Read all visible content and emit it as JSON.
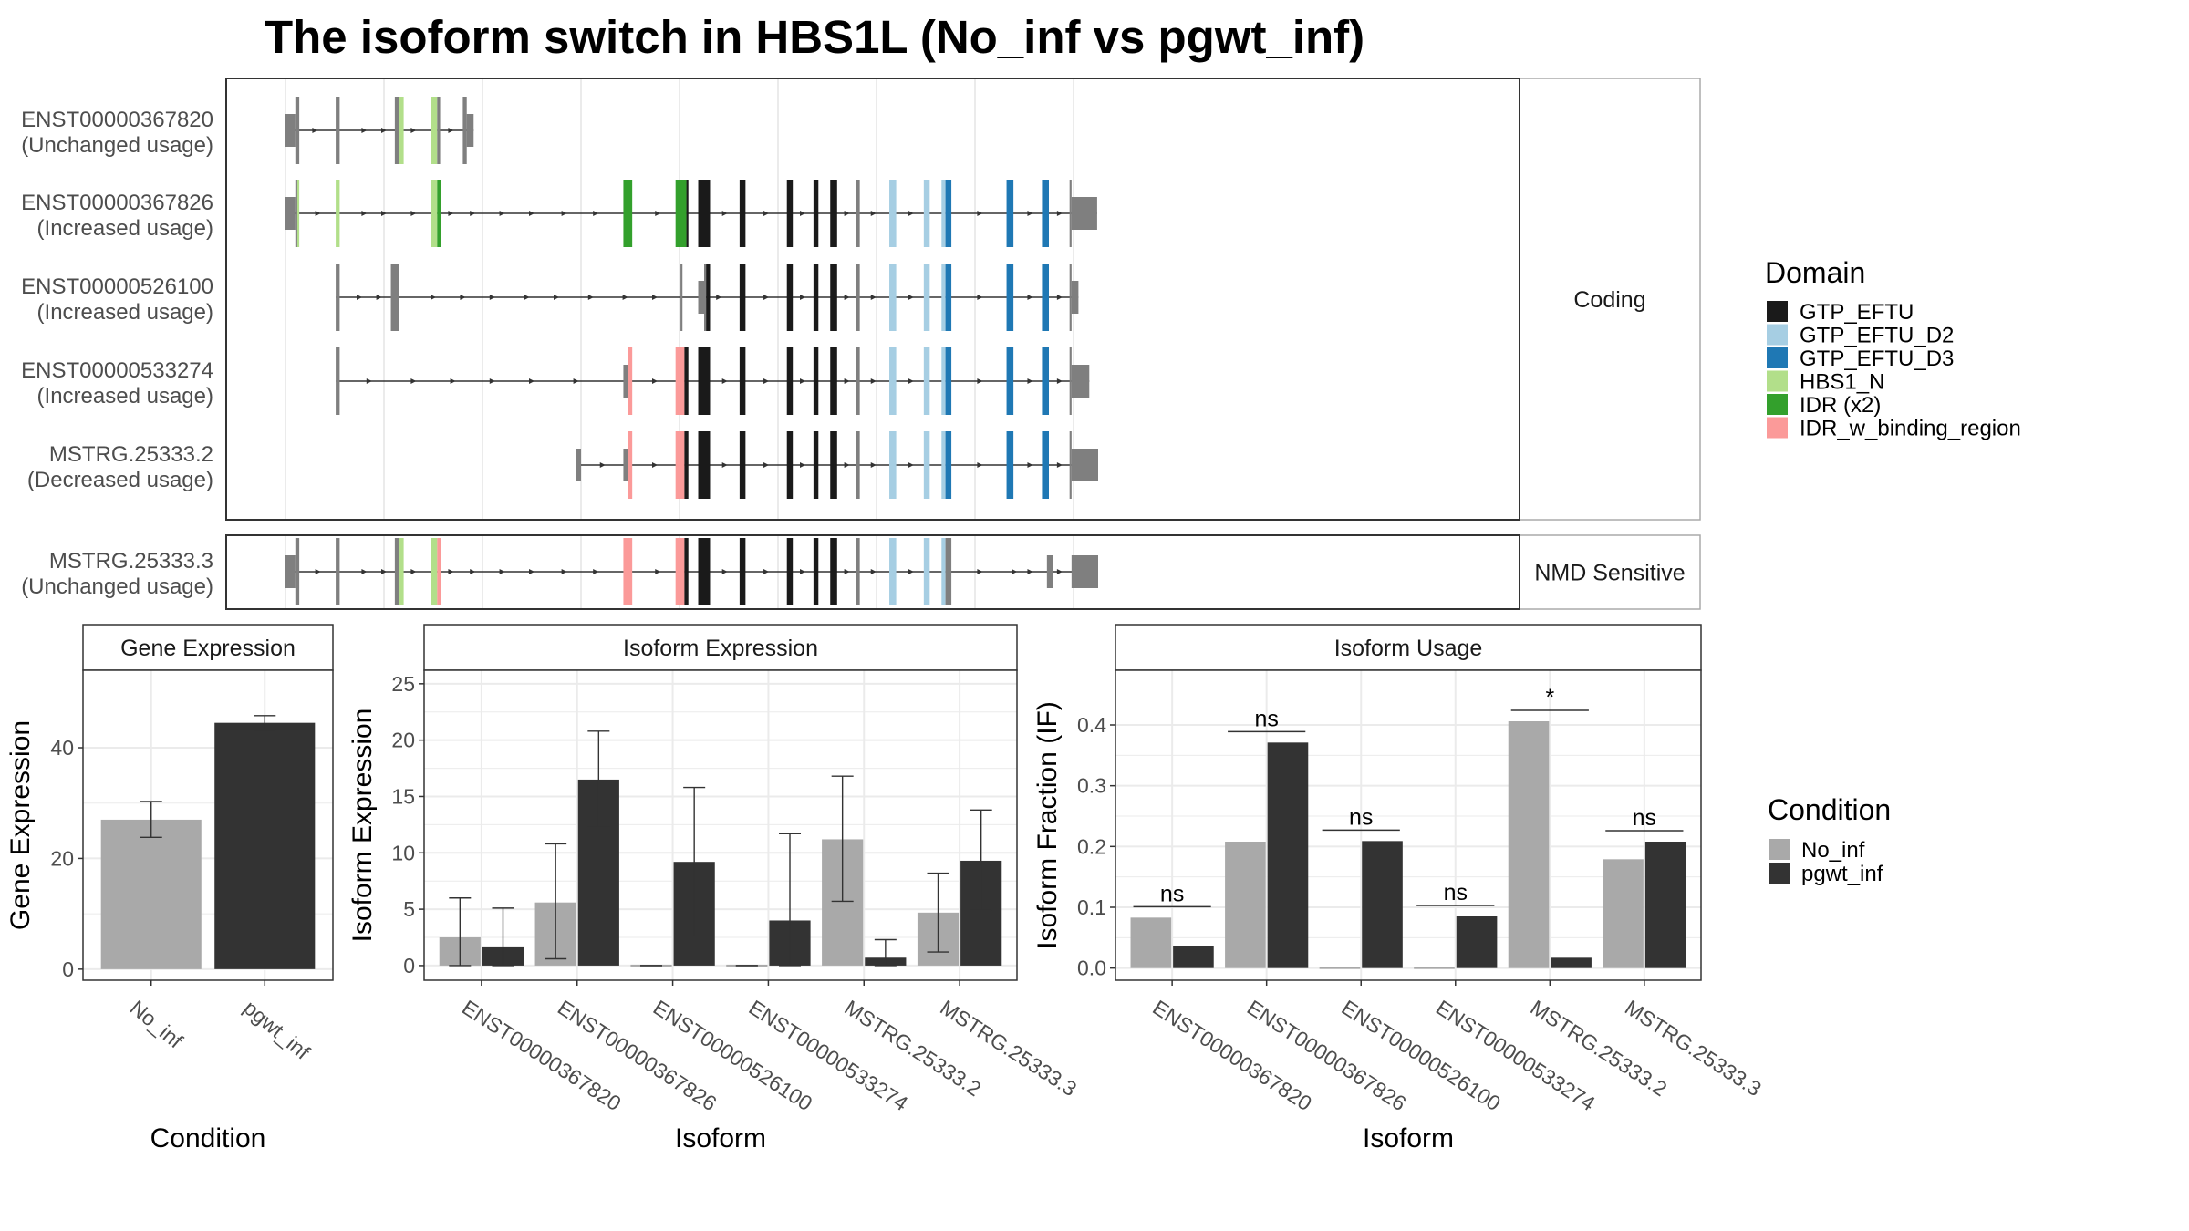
{
  "title": "The isoform switch in HBS1L (No_inf vs pgwt_inf)",
  "colors": {
    "panel_border": "#333333",
    "strip_fill": "#ffffff",
    "grid": "#ebebeb",
    "intron": "#333333",
    "utr": "#7f7f7f",
    "no_inf": "#a9a9a9",
    "pgwt_inf": "#333333",
    "GTP_EFTU": "#1a1a1a",
    "GTP_EFTU_D2": "#a6cee3",
    "GTP_EFTU_D3": "#1f78b4",
    "HBS1_N": "#b2df8a",
    "IDR (x2)": "#33a02c",
    "IDR_w_binding_region": "#fb9a99"
  },
  "transcripts": {
    "facets": [
      "Coding",
      "NMD Sensitive"
    ],
    "rows": [
      {
        "id": "ENST00000367820",
        "usage": "(Unchanged usage)",
        "facet": "Coding",
        "features": [
          {
            "kind": "utr",
            "start": 0,
            "end": 10
          },
          {
            "kind": "cds",
            "start": 10,
            "end": 14
          },
          {
            "kind": "cds",
            "start": 51,
            "end": 55
          },
          {
            "kind": "cds",
            "start": 111,
            "end": 115
          },
          {
            "kind": "HBS1_N",
            "start": 115,
            "end": 120
          },
          {
            "kind": "HBS1_N",
            "start": 148,
            "end": 154
          },
          {
            "kind": "cds",
            "start": 154,
            "end": 157
          },
          {
            "kind": "cds",
            "start": 180,
            "end": 184
          },
          {
            "kind": "utr",
            "start": 184,
            "end": 191
          }
        ],
        "arrows": [
          30,
          80,
          100,
          130,
          168
        ]
      },
      {
        "id": "ENST00000367826",
        "usage": "(Increased usage)",
        "facet": "Coding",
        "features": [
          {
            "kind": "utr",
            "start": 0,
            "end": 10
          },
          {
            "kind": "cds",
            "start": 10,
            "end": 12
          },
          {
            "kind": "HBS1_N",
            "start": 12,
            "end": 14
          },
          {
            "kind": "HBS1_N",
            "start": 51,
            "end": 55
          },
          {
            "kind": "HBS1_N",
            "start": 148,
            "end": 154
          },
          {
            "kind": "IDR (x2)",
            "start": 154,
            "end": 158
          },
          {
            "kind": "IDR (x2)",
            "start": 343,
            "end": 352
          },
          {
            "kind": "IDR (x2)",
            "start": 396,
            "end": 407
          },
          {
            "kind": "GTP_EFTU",
            "start": 407,
            "end": 409
          },
          {
            "kind": "GTP_EFTU",
            "start": 419,
            "end": 431
          },
          {
            "kind": "GTP_EFTU",
            "start": 461,
            "end": 467
          },
          {
            "kind": "GTP_EFTU",
            "start": 509,
            "end": 515
          },
          {
            "kind": "GTP_EFTU",
            "start": 536,
            "end": 541
          },
          {
            "kind": "GTP_EFTU",
            "start": 553,
            "end": 560
          },
          {
            "kind": "cds",
            "start": 579,
            "end": 583
          },
          {
            "kind": "GTP_EFTU_D2",
            "start": 613,
            "end": 620
          },
          {
            "kind": "GTP_EFTU_D2",
            "start": 648,
            "end": 654
          },
          {
            "kind": "GTP_EFTU_D2",
            "start": 666,
            "end": 670
          },
          {
            "kind": "GTP_EFTU_D3",
            "start": 670,
            "end": 676
          },
          {
            "kind": "GTP_EFTU_D3",
            "start": 732,
            "end": 739
          },
          {
            "kind": "GTP_EFTU_D3",
            "start": 768,
            "end": 775
          },
          {
            "kind": "cds",
            "start": 796,
            "end": 798
          },
          {
            "kind": "utr",
            "start": 798,
            "end": 824
          }
        ],
        "arrows": [
          33,
          80,
          100,
          130,
          168,
          190,
          220,
          250,
          283,
          315,
          378,
          446,
          488,
          525,
          570,
          597,
          635,
          705,
          756,
          786
        ]
      },
      {
        "id": "ENST00000526100",
        "usage": "(Increased usage)",
        "facet": "Coding",
        "features": [
          {
            "kind": "cds",
            "start": 51,
            "end": 55
          },
          {
            "kind": "cds",
            "start": 107,
            "end": 115
          },
          {
            "kind": "cds",
            "start": 401,
            "end": 403
          },
          {
            "kind": "utr",
            "start": 419,
            "end": 425
          },
          {
            "kind": "cds",
            "start": 425,
            "end": 427
          },
          {
            "kind": "GTP_EFTU",
            "start": 427,
            "end": 431
          },
          {
            "kind": "GTP_EFTU",
            "start": 461,
            "end": 467
          },
          {
            "kind": "GTP_EFTU",
            "start": 509,
            "end": 515
          },
          {
            "kind": "GTP_EFTU",
            "start": 536,
            "end": 541
          },
          {
            "kind": "GTP_EFTU",
            "start": 553,
            "end": 560
          },
          {
            "kind": "cds",
            "start": 579,
            "end": 583
          },
          {
            "kind": "GTP_EFTU_D2",
            "start": 613,
            "end": 620
          },
          {
            "kind": "GTP_EFTU_D2",
            "start": 648,
            "end": 654
          },
          {
            "kind": "GTP_EFTU_D2",
            "start": 666,
            "end": 670
          },
          {
            "kind": "GTP_EFTU_D3",
            "start": 670,
            "end": 676
          },
          {
            "kind": "GTP_EFTU_D3",
            "start": 732,
            "end": 739
          },
          {
            "kind": "GTP_EFTU_D3",
            "start": 768,
            "end": 775
          },
          {
            "kind": "cds",
            "start": 796,
            "end": 798
          },
          {
            "kind": "utr",
            "start": 798,
            "end": 805
          }
        ],
        "arrows": [
          75,
          95,
          150,
          180,
          210,
          245,
          275,
          310,
          345,
          375,
          440,
          488,
          525,
          570,
          597,
          635,
          705,
          756,
          786
        ]
      },
      {
        "id": "ENST00000533274",
        "usage": "(Increased usage)",
        "facet": "Coding",
        "features": [
          {
            "kind": "cds",
            "start": 51,
            "end": 55
          },
          {
            "kind": "utr",
            "start": 343,
            "end": 348
          },
          {
            "kind": "IDR_w_binding_region",
            "start": 348,
            "end": 352
          },
          {
            "kind": "IDR_w_binding_region",
            "start": 396,
            "end": 405
          },
          {
            "kind": "GTP_EFTU",
            "start": 405,
            "end": 409
          },
          {
            "kind": "GTP_EFTU",
            "start": 419,
            "end": 431
          },
          {
            "kind": "GTP_EFTU",
            "start": 461,
            "end": 467
          },
          {
            "kind": "GTP_EFTU",
            "start": 509,
            "end": 515
          },
          {
            "kind": "GTP_EFTU",
            "start": 536,
            "end": 541
          },
          {
            "kind": "GTP_EFTU",
            "start": 553,
            "end": 560
          },
          {
            "kind": "cds",
            "start": 579,
            "end": 583
          },
          {
            "kind": "GTP_EFTU_D2",
            "start": 613,
            "end": 620
          },
          {
            "kind": "GTP_EFTU_D2",
            "start": 648,
            "end": 654
          },
          {
            "kind": "GTP_EFTU_D2",
            "start": 666,
            "end": 670
          },
          {
            "kind": "GTP_EFTU_D3",
            "start": 670,
            "end": 676
          },
          {
            "kind": "GTP_EFTU_D3",
            "start": 732,
            "end": 739
          },
          {
            "kind": "GTP_EFTU_D3",
            "start": 768,
            "end": 775
          },
          {
            "kind": "cds",
            "start": 796,
            "end": 798
          },
          {
            "kind": "utr",
            "start": 798,
            "end": 816
          }
        ],
        "arrows": [
          85,
          130,
          170,
          210,
          250,
          295,
          375,
          446,
          488,
          525,
          570,
          597,
          635,
          705,
          756,
          786
        ]
      },
      {
        "id": "MSTRG.25333.2",
        "usage": "(Decreased usage)",
        "facet": "Coding",
        "features": [
          {
            "kind": "utr",
            "start": 295,
            "end": 300
          },
          {
            "kind": "utr",
            "start": 343,
            "end": 348
          },
          {
            "kind": "IDR_w_binding_region",
            "start": 348,
            "end": 352
          },
          {
            "kind": "IDR_w_binding_region",
            "start": 396,
            "end": 405
          },
          {
            "kind": "GTP_EFTU",
            "start": 405,
            "end": 409
          },
          {
            "kind": "GTP_EFTU",
            "start": 419,
            "end": 431
          },
          {
            "kind": "GTP_EFTU",
            "start": 461,
            "end": 467
          },
          {
            "kind": "GTP_EFTU",
            "start": 509,
            "end": 515
          },
          {
            "kind": "GTP_EFTU",
            "start": 536,
            "end": 541
          },
          {
            "kind": "GTP_EFTU",
            "start": 553,
            "end": 560
          },
          {
            "kind": "cds",
            "start": 579,
            "end": 583
          },
          {
            "kind": "GTP_EFTU_D2",
            "start": 613,
            "end": 620
          },
          {
            "kind": "GTP_EFTU_D2",
            "start": 648,
            "end": 654
          },
          {
            "kind": "GTP_EFTU_D2",
            "start": 666,
            "end": 670
          },
          {
            "kind": "GTP_EFTU_D3",
            "start": 670,
            "end": 676
          },
          {
            "kind": "GTP_EFTU_D3",
            "start": 732,
            "end": 739
          },
          {
            "kind": "GTP_EFTU_D3",
            "start": 768,
            "end": 775
          },
          {
            "kind": "cds",
            "start": 796,
            "end": 798
          },
          {
            "kind": "utr",
            "start": 798,
            "end": 825
          }
        ],
        "arrows": [
          322,
          375,
          446,
          488,
          525,
          570,
          597,
          635,
          705,
          756,
          786
        ]
      },
      {
        "id": "MSTRG.25333.3",
        "usage": "(Unchanged usage)",
        "facet": "NMD Sensitive",
        "features": [
          {
            "kind": "utr",
            "start": 0,
            "end": 10
          },
          {
            "kind": "cds",
            "start": 10,
            "end": 14
          },
          {
            "kind": "cds",
            "start": 51,
            "end": 55
          },
          {
            "kind": "cds",
            "start": 111,
            "end": 115
          },
          {
            "kind": "HBS1_N",
            "start": 115,
            "end": 120
          },
          {
            "kind": "HBS1_N",
            "start": 148,
            "end": 154
          },
          {
            "kind": "IDR_w_binding_region",
            "start": 154,
            "end": 158
          },
          {
            "kind": "IDR_w_binding_region",
            "start": 343,
            "end": 352
          },
          {
            "kind": "IDR_w_binding_region",
            "start": 396,
            "end": 405
          },
          {
            "kind": "GTP_EFTU",
            "start": 405,
            "end": 409
          },
          {
            "kind": "GTP_EFTU",
            "start": 419,
            "end": 431
          },
          {
            "kind": "GTP_EFTU",
            "start": 461,
            "end": 467
          },
          {
            "kind": "GTP_EFTU",
            "start": 509,
            "end": 515
          },
          {
            "kind": "GTP_EFTU",
            "start": 536,
            "end": 541
          },
          {
            "kind": "GTP_EFTU",
            "start": 553,
            "end": 560
          },
          {
            "kind": "cds",
            "start": 579,
            "end": 583
          },
          {
            "kind": "GTP_EFTU_D2",
            "start": 613,
            "end": 620
          },
          {
            "kind": "GTP_EFTU_D2",
            "start": 648,
            "end": 654
          },
          {
            "kind": "GTP_EFTU_D2",
            "start": 666,
            "end": 670
          },
          {
            "kind": "cds",
            "start": 670,
            "end": 676
          },
          {
            "kind": "utr",
            "start": 773,
            "end": 779
          },
          {
            "kind": "utr",
            "start": 798,
            "end": 825
          }
        ],
        "arrows": [
          33,
          80,
          100,
          130,
          168,
          190,
          220,
          250,
          283,
          315,
          378,
          446,
          488,
          525,
          570,
          597,
          635,
          705,
          740,
          756,
          786
        ]
      }
    ]
  },
  "legend_domain": {
    "title": "Domain",
    "items": [
      "GTP_EFTU",
      "GTP_EFTU_D2",
      "GTP_EFTU_D3",
      "HBS1_N",
      "IDR (x2)",
      "IDR_w_binding_region"
    ]
  },
  "legend_condition": {
    "title": "Condition",
    "items": [
      "No_inf",
      "pgwt_inf"
    ]
  },
  "chart_data": [
    {
      "type": "bar",
      "title": "Gene Expression",
      "xlabel": "Condition",
      "ylabel": "Gene Expression",
      "categories": [
        "No_inf",
        "pgwt_inf"
      ],
      "values": [
        27.0,
        44.5
      ],
      "err_low": [
        23.8,
        43.2
      ],
      "err_high": [
        30.3,
        45.8
      ],
      "ylim": [
        -2,
        54
      ],
      "yticks": [
        0,
        20,
        40
      ]
    },
    {
      "type": "bar",
      "title": "Isoform Expression",
      "xlabel": "Isoform",
      "ylabel": "Isoform Expression",
      "categories": [
        "ENST00000367820",
        "ENST00000367826",
        "ENST00000526100",
        "ENST00000533274",
        "MSTRG.25333.2",
        "MSTRG.25333.3"
      ],
      "series": [
        {
          "name": "No_inf",
          "values": [
            2.5,
            5.6,
            0.0,
            0.0,
            11.2,
            4.7
          ],
          "err_low": [
            0.0,
            0.6,
            0.0,
            0.0,
            5.7,
            1.2
          ],
          "err_high": [
            6.0,
            10.8,
            0.0,
            0.0,
            16.8,
            8.2
          ]
        },
        {
          "name": "pgwt_inf",
          "values": [
            1.7,
            16.5,
            9.2,
            4.0,
            0.7,
            9.3
          ],
          "err_low": [
            0.0,
            12.3,
            2.6,
            0.0,
            0.0,
            4.9
          ],
          "err_high": [
            5.1,
            20.8,
            15.8,
            11.7,
            2.3,
            13.8
          ]
        }
      ],
      "ylim": [
        -1.3,
        26.2
      ],
      "yticks": [
        0,
        5,
        10,
        15,
        20,
        25
      ]
    },
    {
      "type": "bar",
      "title": "Isoform Usage",
      "xlabel": "Isoform",
      "ylabel": "Isoform Fraction (IF)",
      "categories": [
        "ENST00000367820",
        "ENST00000367826",
        "ENST00000526100",
        "ENST00000533274",
        "MSTRG.25333.2",
        "MSTRG.25333.3"
      ],
      "series": [
        {
          "name": "No_inf",
          "values": [
            0.083,
            0.208,
            0.0,
            0.0,
            0.406,
            0.179
          ]
        },
        {
          "name": "pgwt_inf",
          "values": [
            0.037,
            0.371,
            0.209,
            0.085,
            0.017,
            0.208
          ]
        }
      ],
      "significance": [
        "ns",
        "ns",
        "ns",
        "ns",
        "*",
        "ns"
      ],
      "ylim": [
        -0.02,
        0.49
      ],
      "yticks": [
        0.0,
        0.1,
        0.2,
        0.3,
        0.4
      ],
      "ytick_labels": [
        "0.0",
        "0.1",
        "0.2",
        "0.3",
        "0.4"
      ]
    }
  ]
}
